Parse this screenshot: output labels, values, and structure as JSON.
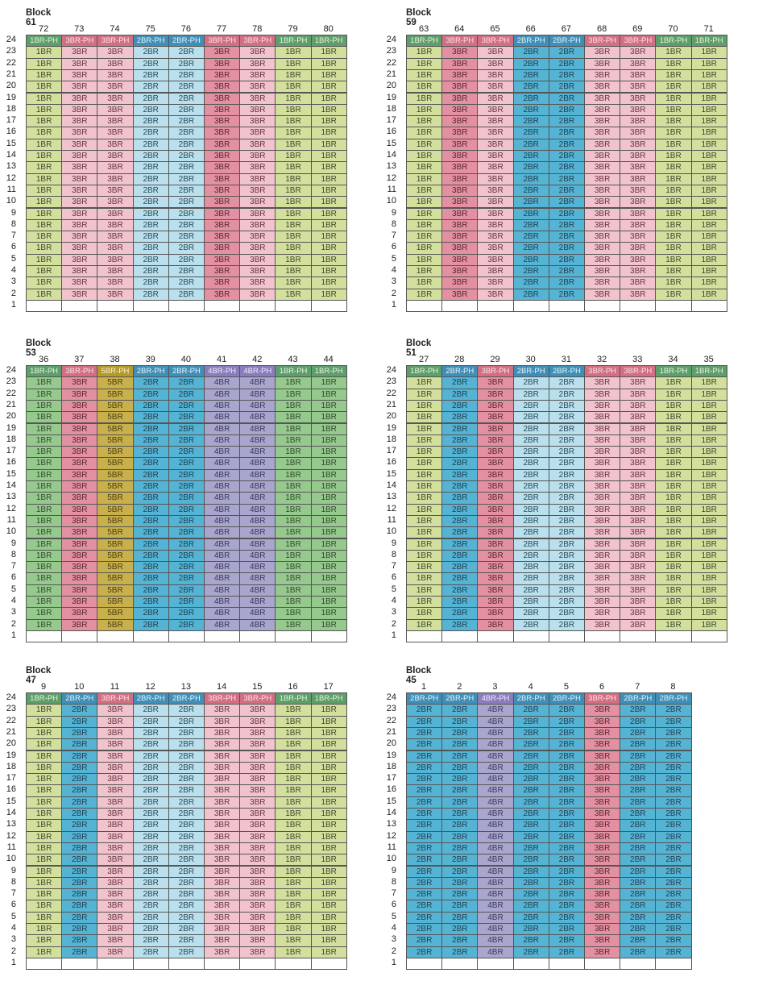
{
  "floors": [
    "24",
    "23",
    "22",
    "21",
    "20",
    "19",
    "18",
    "17",
    "16",
    "15",
    "14",
    "13",
    "12",
    "11",
    "10",
    "9",
    "8",
    "7",
    "6",
    "5",
    "4",
    "3",
    "2",
    "1"
  ],
  "colors": {
    "1BR": {
      "row": "#d3df9d",
      "ph": "#5e9e6a",
      "text": "#3a4a2a",
      "ph_text": "#e8f5e0"
    },
    "2BR": {
      "row": "#b9e0ec",
      "ph": "#3f8fb8",
      "text": "#2a4a5a",
      "ph_text": "#e7f4fb"
    },
    "3BR": {
      "row": "#f1c3cc",
      "ph": "#d26f84",
      "text": "#6a3340",
      "ph_text": "#fbe5ea"
    },
    "1BR-dark": {
      "row": "#96c98e",
      "ph": "#5e9e6a",
      "text": "#2e4a2a",
      "ph_text": "#e8f5e0"
    },
    "2BR-dark": {
      "row": "#55b3d4",
      "ph": "#3f8fb8",
      "text": "#1f3f50",
      "ph_text": "#e7f4fb"
    },
    "3BR-dark": {
      "row": "#e391a2",
      "ph": "#d26f84",
      "text": "#5a2632",
      "ph_text": "#fbe5ea"
    },
    "4BR": {
      "row": "#a8a6cd",
      "ph": "#8b7dbd",
      "text": "#3a3660",
      "ph_text": "#efedfa"
    },
    "5BR": {
      "row": "#c8b04c",
      "ph": "#b79a2d",
      "text": "#4a3e10",
      "ph_text": "#faf3d5"
    }
  },
  "blocks": [
    {
      "title": "Block 61",
      "units": [
        "72",
        "73",
        "74",
        "75",
        "76",
        "77",
        "78",
        "79",
        "80"
      ],
      "types": [
        "1BR",
        "3BR",
        "3BR",
        "2BR",
        "2BR",
        "3BR",
        "3BR",
        "1BR",
        "1BR"
      ],
      "palette": [
        "1BR",
        "3BR",
        "3BR",
        "2BR",
        "2BR",
        "3BR-dark",
        "3BR",
        "1BR",
        "1BR"
      ]
    },
    {
      "title": "Block 59",
      "units": [
        "63",
        "64",
        "65",
        "66",
        "67",
        "68",
        "69",
        "70",
        "71"
      ],
      "types": [
        "1BR",
        "3BR",
        "3BR",
        "2BR",
        "2BR",
        "3BR",
        "3BR",
        "1BR",
        "1BR"
      ],
      "palette": [
        "1BR",
        "3BR-dark",
        "3BR",
        "2BR-dark",
        "2BR-dark",
        "3BR",
        "3BR",
        "1BR",
        "1BR"
      ]
    },
    {
      "title": "Block 53",
      "units": [
        "36",
        "37",
        "38",
        "39",
        "40",
        "41",
        "42",
        "43",
        "44"
      ],
      "types": [
        "1BR",
        "3BR",
        "5BR",
        "2BR",
        "2BR",
        "4BR",
        "4BR",
        "1BR",
        "1BR"
      ],
      "palette": [
        "1BR-dark",
        "3BR-dark",
        "5BR",
        "2BR-dark",
        "2BR-dark",
        "4BR",
        "4BR",
        "1BR-dark",
        "1BR-dark"
      ]
    },
    {
      "title": "Block 51",
      "units": [
        "27",
        "28",
        "29",
        "30",
        "31",
        "32",
        "33",
        "34",
        "35"
      ],
      "types": [
        "1BR",
        "2BR",
        "3BR",
        "2BR",
        "2BR",
        "3BR",
        "3BR",
        "1BR",
        "1BR"
      ],
      "palette": [
        "1BR",
        "2BR-dark",
        "3BR-dark",
        "2BR",
        "2BR",
        "3BR",
        "3BR",
        "1BR",
        "1BR"
      ]
    },
    {
      "title": "Block 47",
      "units": [
        "9",
        "10",
        "11",
        "12",
        "13",
        "14",
        "15",
        "16",
        "17"
      ],
      "types": [
        "1BR",
        "2BR",
        "3BR",
        "2BR",
        "2BR",
        "3BR",
        "3BR",
        "1BR",
        "1BR"
      ],
      "palette": [
        "1BR",
        "2BR-dark",
        "3BR",
        "2BR",
        "2BR",
        "3BR",
        "3BR",
        "1BR",
        "1BR"
      ]
    },
    {
      "title": "Block 45",
      "units": [
        "1",
        "2",
        "3",
        "4",
        "5",
        "6",
        "7",
        "8"
      ],
      "types": [
        "2BR",
        "2BR",
        "4BR",
        "2BR",
        "2BR",
        "3BR",
        "2BR",
        "2BR"
      ],
      "palette": [
        "2BR-dark",
        "2BR-dark",
        "4BR",
        "2BR-dark",
        "2BR-dark",
        "3BR-dark",
        "2BR-dark",
        "2BR-dark"
      ]
    }
  ]
}
